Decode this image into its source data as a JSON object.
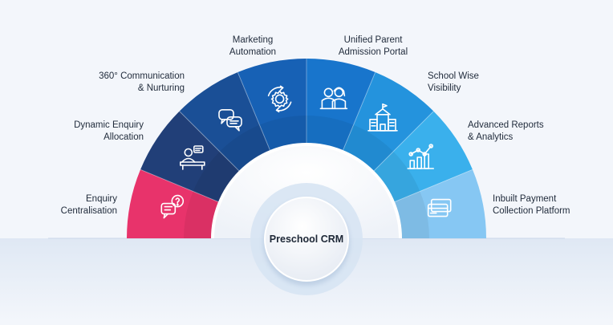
{
  "center": {
    "title": "Preschool CRM"
  },
  "segments": [
    {
      "label": "Enquiry\nCentralisation",
      "color": "#e8336b",
      "icon": "chat-question-icon"
    },
    {
      "label": "Dynamic Enquiry\nAllocation",
      "color": "#213f78",
      "icon": "agent-desk-icon"
    },
    {
      "label": "360° Communication\n& Nurturing",
      "color": "#1a4f96",
      "icon": "chat-bubbles-icon"
    },
    {
      "label": "Marketing\nAutomation",
      "color": "#1761b5",
      "icon": "gear-cycle-icon"
    },
    {
      "label": "Unified Parent\nAdmission Portal",
      "color": "#1875cc",
      "icon": "parents-icon"
    },
    {
      "label": "School Wise\nVisibility",
      "color": "#2493dd",
      "icon": "school-building-icon"
    },
    {
      "label": "Advanced Reports\n& Analytics",
      "color": "#3ab0ec",
      "icon": "analytics-chart-icon"
    },
    {
      "label": "Inbuilt Payment\nCollection Platform",
      "color": "#86c7f3",
      "icon": "credit-cards-icon"
    }
  ]
}
